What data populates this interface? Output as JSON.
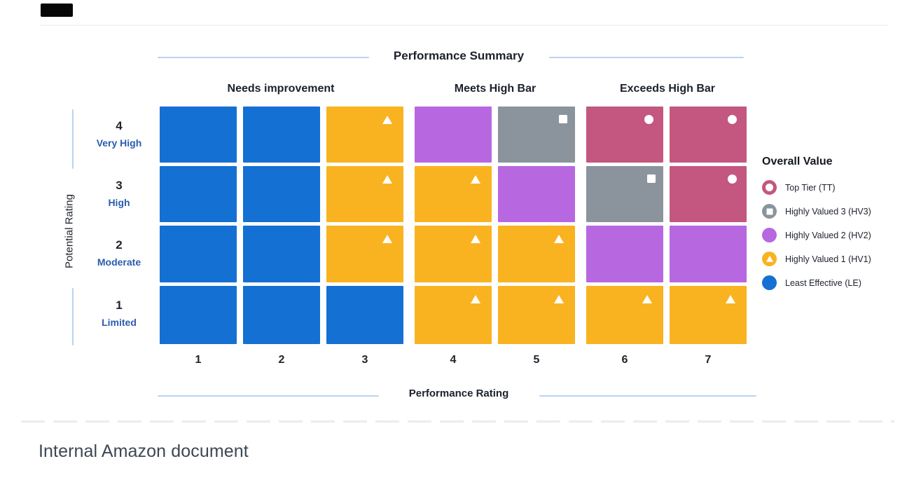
{
  "chart_data": {
    "type": "heatmap",
    "title": "Performance Summary",
    "xlabel": "Performance Rating",
    "ylabel": "Potential Rating",
    "x_ticks": [
      "1",
      "2",
      "3",
      "4",
      "5",
      "6",
      "7"
    ],
    "column_groups": [
      {
        "label": "Needs improvement",
        "columns": [
          1,
          2,
          3
        ]
      },
      {
        "label": "Meets High Bar",
        "columns": [
          4,
          5
        ]
      },
      {
        "label": "Exceeds High Bar",
        "columns": [
          6,
          7
        ]
      }
    ],
    "rows": [
      {
        "rating": "4",
        "label": "Very High",
        "values": [
          "LE",
          "LE",
          "HV1",
          "HV2",
          "HV3",
          "TT",
          "TT"
        ]
      },
      {
        "rating": "3",
        "label": "High",
        "values": [
          "LE",
          "LE",
          "HV1",
          "HV1",
          "HV2",
          "HV3",
          "TT"
        ]
      },
      {
        "rating": "2",
        "label": "Moderate",
        "values": [
          "LE",
          "LE",
          "HV1",
          "HV1",
          "HV1",
          "HV2",
          "HV2"
        ]
      },
      {
        "rating": "1",
        "label": "Limited",
        "values": [
          "LE",
          "LE",
          "LE",
          "HV1",
          "HV1",
          "HV1",
          "HV1"
        ]
      }
    ],
    "value_colors": {
      "LE": "#1470d2",
      "HV1": "#f9b321",
      "HV2": "#b768e1",
      "HV3": "#8b949d",
      "TT": "#c4577f"
    },
    "value_markers": {
      "HV1": "triangle",
      "HV3": "square",
      "TT": "circle"
    },
    "legend": {
      "title": "Overall Value",
      "position": "right",
      "items": [
        {
          "code": "TT",
          "label": "Top Tier (TT)",
          "color": "#c4577f",
          "swatch": "ring"
        },
        {
          "code": "HV3",
          "label": "Highly Valued 3 (HV3)",
          "color": "#8b949d",
          "swatch": "circle-square"
        },
        {
          "code": "HV2",
          "label": "Highly Valued 2 (HV2)",
          "color": "#b768e1",
          "swatch": "circle"
        },
        {
          "code": "HV1",
          "label": "Highly Valued 1 (HV1)",
          "color": "#f9b321",
          "swatch": "circle-triangle"
        },
        {
          "code": "LE",
          "label": "Least Effective (LE)",
          "color": "#1470d2",
          "swatch": "circle"
        }
      ]
    },
    "axis_rule_color": "#b9d4ee",
    "row_descriptor_color": "#2a5cae",
    "grid": false
  },
  "footer": {
    "caption": "Internal Amazon document"
  }
}
